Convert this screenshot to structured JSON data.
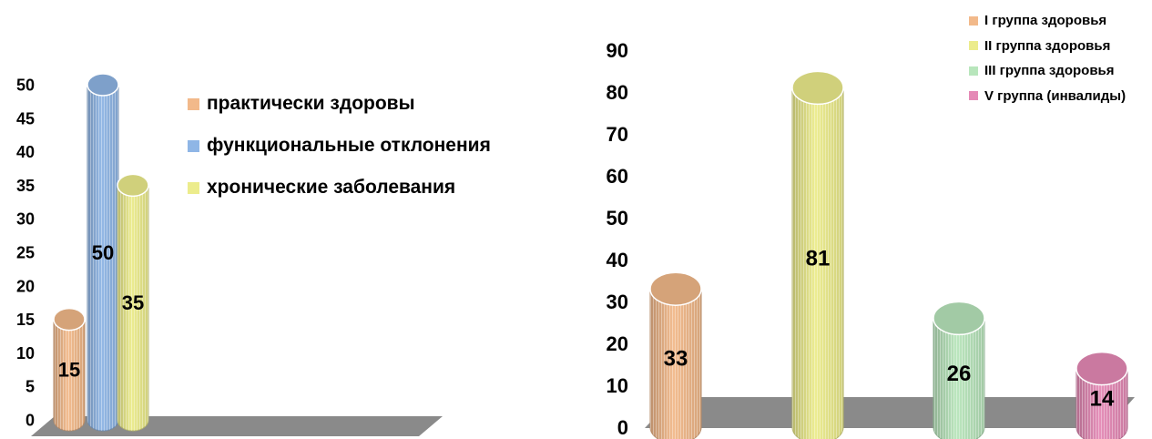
{
  "colors": {
    "peach": "#f2b98a",
    "blue": "#8fb6e6",
    "yellow": "#ecec8c",
    "green": "#b8e6bc",
    "pink": "#e58ab6",
    "floor": "#8a8a8a"
  },
  "chart_data": [
    {
      "type": "bar",
      "style": "3d-cylinder",
      "categories": [
        "практически здоровы",
        "функциональные отклонения",
        "хронические заболевания"
      ],
      "values": [
        15,
        50,
        35
      ],
      "data_labels": [
        "15",
        "50",
        "35"
      ],
      "ylim": [
        0,
        50
      ],
      "yticks": [
        "0",
        "5",
        "10",
        "15",
        "20",
        "25",
        "30",
        "35",
        "40",
        "45",
        "50"
      ],
      "legend": [
        "практически здоровы",
        "функциональные отклонения",
        "хронические заболевания"
      ],
      "legend_position": "right",
      "colors": [
        "#f2b98a",
        "#8fb6e6",
        "#ecec8c"
      ],
      "grid": false
    },
    {
      "type": "bar",
      "style": "3d-cylinder",
      "categories": [
        "I группа здоровья",
        "II группа здоровья",
        "III группа здоровья",
        "V группа (инвалиды)"
      ],
      "values": [
        33,
        81,
        26,
        14
      ],
      "data_labels": [
        "33",
        "81",
        "26",
        "14"
      ],
      "ylim": [
        0,
        90
      ],
      "yticks": [
        "0",
        "10",
        "20",
        "30",
        "40",
        "50",
        "60",
        "70",
        "80",
        "90"
      ],
      "legend": [
        "I группа здоровья",
        "II группа здоровья",
        "III группа здоровья",
        "V группа (инвалиды)"
      ],
      "legend_position": "top-right",
      "colors": [
        "#f2b98a",
        "#ecec8c",
        "#b8e6bc",
        "#e58ab6"
      ],
      "grid": false
    }
  ]
}
